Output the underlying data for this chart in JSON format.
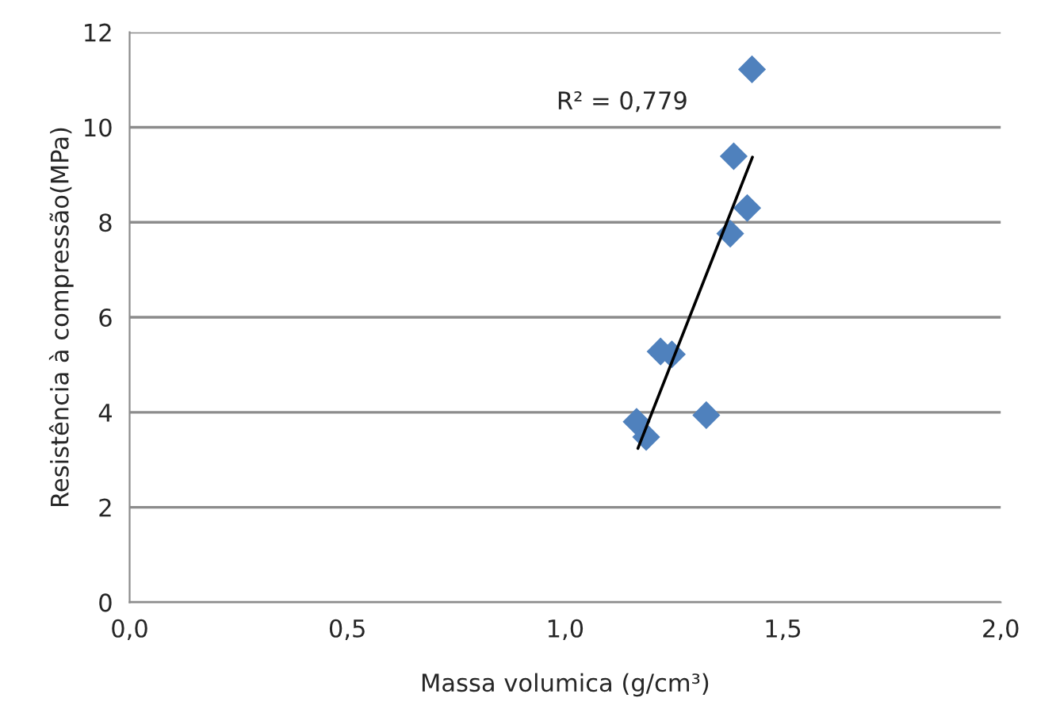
{
  "chart_data": {
    "type": "scatter",
    "xlabel": "Massa volumica (g/cm³)",
    "ylabel": "Resistência à compressão(MPa)",
    "annotations": [
      "R² = 0,779"
    ],
    "series": [
      {
        "color": "#4f81bd",
        "marker": "diamond",
        "x": [
          1.429,
          1.387,
          1.418,
          1.379,
          1.219,
          1.245,
          1.164,
          1.186,
          1.324
        ],
        "values": [
          11.22,
          9.39,
          8.3,
          7.76,
          5.28,
          5.22,
          3.8,
          3.48,
          3.94
        ]
      },
      {
        "type": "line",
        "color": "#000000",
        "line_style": "solid",
        "x": [
          1.167,
          1.43
        ],
        "values": [
          3.24,
          9.37
        ]
      }
    ],
    "xlim": [
      0,
      2
    ],
    "ylim": [
      0,
      12
    ],
    "xticks": [
      {
        "value": 0,
        "label": "0,0"
      },
      {
        "value": 0.5,
        "label": "0,5"
      },
      {
        "value": 1,
        "label": "1,0"
      },
      {
        "value": 1.5,
        "label": "1,5"
      },
      {
        "value": 2,
        "label": "2,0"
      }
    ],
    "yticks": [
      0,
      2,
      4,
      6,
      8,
      10,
      12
    ],
    "grid": "y"
  }
}
